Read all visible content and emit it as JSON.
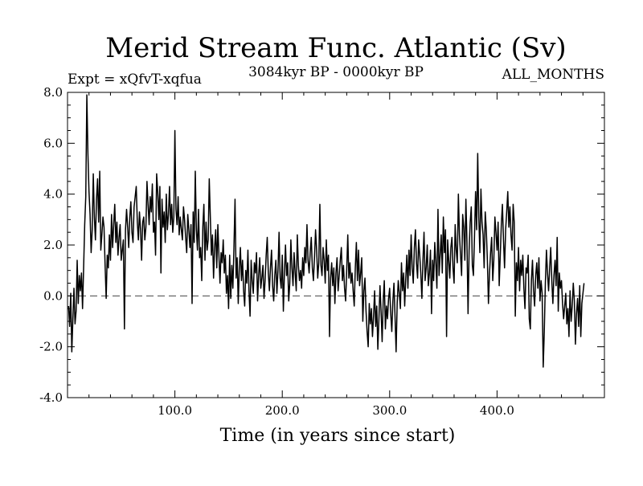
{
  "chart_data": {
    "type": "line",
    "title": "Merid Stream Func. Atlantic (Sv)",
    "subtitle_left": "Expt = xQfvT-xqfua",
    "subtitle_center": "3084kyr BP - 0000kyr BP",
    "subtitle_right": "ALL_MONTHS",
    "xlabel": "Time (in years since start)",
    "ylabel": "",
    "xlim": [
      0,
      500
    ],
    "ylim": [
      -4.0,
      8.0
    ],
    "x_ticks": [
      100,
      200,
      300,
      400
    ],
    "x_tick_labels": [
      "100.0",
      "200.0",
      "300.0",
      "400.0"
    ],
    "y_ticks": [
      -4,
      -2,
      0,
      2,
      4,
      6,
      8
    ],
    "y_tick_labels": [
      "-4.0",
      "-2.0",
      "0.0",
      "2.0",
      "4.0",
      "6.0",
      "8.0"
    ],
    "zero_line": true,
    "grid": false,
    "series": [
      {
        "name": "Merid Stream Func. Atlantic",
        "x_start": 1,
        "x_step": 1,
        "values": [
          -0.4,
          -1.2,
          0.1,
          -2.2,
          -0.9,
          0.3,
          -1.1,
          -0.6,
          1.4,
          -0.3,
          0.8,
          0.2,
          0.9,
          -0.5,
          1.1,
          2.8,
          3.9,
          7.9,
          5.6,
          4.1,
          3.2,
          1.7,
          2.6,
          4.8,
          3.1,
          2.2,
          3.8,
          4.6,
          2.9,
          4.9,
          1.8,
          2.4,
          3.1,
          2.7,
          1.2,
          -0.1,
          1.6,
          1.1,
          2.4,
          1.4,
          3.2,
          1.9,
          2.8,
          3.6,
          2.1,
          2.9,
          1.6,
          2.3,
          2.8,
          1.4,
          1.8,
          2.2,
          -1.3,
          2.6,
          3.4,
          2.7,
          1.9,
          3.1,
          3.7,
          2.5,
          2.1,
          3.5,
          3.9,
          4.3,
          2.9,
          2.2,
          3.3,
          2.6,
          1.4,
          2.9,
          3.1,
          2.2,
          2.7,
          4.5,
          3.6,
          2.8,
          3.9,
          3.3,
          4.4,
          2.5,
          2.9,
          1.6,
          4.8,
          4.1,
          3.0,
          4.3,
          0.9,
          3.8,
          2.7,
          3.3,
          2.1,
          4.0,
          2.6,
          3.2,
          4.3,
          2.8,
          3.6,
          2.5,
          3.1,
          6.5,
          3.4,
          2.8,
          3.9,
          2.4,
          3.1,
          2.6,
          2.2,
          3.5,
          3.0,
          2.3,
          1.7,
          3.2,
          2.6,
          1.9,
          2.8,
          -0.3,
          3.3,
          2.1,
          4.9,
          2.6,
          1.8,
          3.4,
          1.5,
          1.9,
          0.6,
          2.7,
          3.6,
          1.4,
          2.9,
          1.8,
          2.2,
          4.6,
          3.1,
          1.6,
          2.4,
          0.7,
          1.9,
          2.6,
          1.1,
          2.8,
          1.6,
          0.5,
          1.7,
          1.3,
          2.2,
          0.9,
          1.6,
          0.1,
          0.8,
          -0.5,
          1.6,
          -0.1,
          1.2,
          0.3,
          1.9,
          3.8,
          0.7,
          1.5,
          -0.3,
          1.1,
          1.9,
          0.6,
          1.4,
          0.2,
          -0.4,
          1.0,
          0.5,
          1.8,
          0.2,
          -0.8,
          1.4,
          0.6,
          0.1,
          1.3,
          0.9,
          1.7,
          -0.2,
          0.8,
          1.5,
          0.3,
          0.7,
          1.2,
          -0.1,
          0.6,
          1.6,
          2.3,
          0.9,
          0.2,
          1.1,
          1.8,
          0.4,
          -0.2,
          0.8,
          1.4,
          0.1,
          1.0,
          2.5,
          0.7,
          0.3,
          1.6,
          -0.6,
          0.9,
          2.0,
          0.8,
          1.3,
          -0.2,
          0.5,
          2.2,
          1.1,
          0.4,
          1.7,
          0.9,
          0.2,
          2.4,
          1.2,
          0.6,
          1.0,
          0.3,
          1.5,
          0.8,
          1.9,
          1.3,
          2.8,
          1.4,
          0.9,
          1.7,
          2.3,
          1.1,
          0.6,
          1.5,
          2.6,
          1.8,
          0.7,
          1.3,
          3.6,
          1.2,
          0.8,
          1.9,
          1.4,
          0.5,
          2.2,
          1.0,
          1.6,
          -1.6,
          0.7,
          1.3,
          0.4,
          1.1,
          -0.3,
          0.9,
          1.5,
          0.2,
          0.8,
          1.4,
          1.9,
          0.6,
          1.2,
          0.3,
          -0.2,
          1.0,
          2.4,
          0.7,
          1.3,
          0.5,
          0.9,
          0.2,
          -0.4,
          1.1,
          2.1,
          0.6,
          1.8,
          0.4,
          0.9,
          1.5,
          -1.0,
          0.2,
          0.7,
          -0.6,
          -1.4,
          -2.0,
          -0.3,
          -1.1,
          -0.5,
          -1.6,
          -0.8,
          0.2,
          -1.2,
          -0.4,
          -2.1,
          -0.9,
          0.4,
          -0.6,
          -1.8,
          -0.2,
          0.6,
          -1.3,
          -0.4,
          -0.9,
          -0.1,
          0.3,
          -0.7,
          -1.4,
          -0.2,
          0.5,
          -0.8,
          -2.2,
          -0.3,
          0.6,
          0.1,
          -0.5,
          1.3,
          0.2,
          0.9,
          -0.4,
          0.7,
          1.6,
          0.3,
          1.8,
          0.8,
          2.4,
          1.1,
          0.5,
          1.9,
          2.6,
          1.3,
          0.7,
          2.2,
          1.6,
          0.9,
          -0.1,
          1.4,
          2.5,
          0.6,
          1.1,
          2.0,
          0.4,
          0.9,
          1.8,
          -0.7,
          1.4,
          0.6,
          2.1,
          1.3,
          0.3,
          3.4,
          0.8,
          1.6,
          2.4,
          0.9,
          3.1,
          1.7,
          2.6,
          -1.6,
          2.2,
          1.4,
          0.7,
          1.9,
          2.3,
          1.1,
          0.5,
          2.8,
          1.8,
          1.3,
          4.0,
          2.4,
          1.6,
          0.8,
          3.2,
          2.7,
          1.4,
          3.8,
          2.1,
          -0.7,
          1.8,
          2.9,
          3.5,
          1.2,
          0.8,
          2.3,
          4.1,
          2.6,
          5.6,
          3.1,
          1.7,
          4.2,
          2.9,
          2.4,
          1.1,
          3.3,
          2.6,
          1.4,
          -0.3,
          0.9,
          1.7,
          2.3,
          0.6,
          1.4,
          3.1,
          2.5,
          1.8,
          2.9,
          0.4,
          1.6,
          2.8,
          3.6,
          2.2,
          1.1,
          2.6,
          3.3,
          4.1,
          2.7,
          3.5,
          2.4,
          1.8,
          3.6,
          2.9,
          -0.8,
          1.3,
          0.6,
          1.9,
          0.2,
          1.4,
          0.8,
          1.6,
          0.3,
          -0.5,
          1.1,
          0.9,
          1.6,
          -0.9,
          -1.3,
          0.6,
          1.4,
          0.2,
          -0.4,
          0.8,
          1.3,
          0.3,
          1.5,
          -0.2,
          0.6,
          0.1,
          -2.8,
          -1.4,
          0.5,
          1.8,
          0.9,
          0.2,
          1.1,
          1.9,
          0.6,
          -0.3,
          0.8,
          1.4,
          0.4,
          2.3,
          -0.6,
          0.9,
          0.3,
          0.6,
          -0.3,
          -0.9,
          -0.4,
          0.1,
          -1.1,
          -0.5,
          -1.6,
          0.2,
          -1.0,
          -0.4,
          0.5,
          -0.2,
          -1.9,
          -0.7,
          -0.1,
          -1.2,
          0.4,
          -1.6,
          -0.3,
          0.1,
          0.5
        ]
      }
    ]
  }
}
